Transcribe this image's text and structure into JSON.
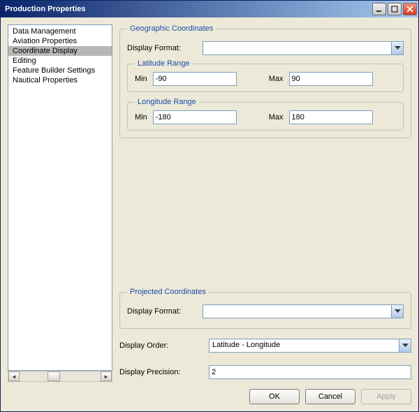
{
  "window": {
    "title": "Production Properties"
  },
  "sidebar": {
    "items": [
      {
        "label": "Data Management"
      },
      {
        "label": "Aviation Properties"
      },
      {
        "label": "Coordinate Display",
        "selected": true
      },
      {
        "label": "Editing"
      },
      {
        "label": "Feature Builder Settings"
      },
      {
        "label": "Nautical Properties"
      }
    ]
  },
  "geo": {
    "legend": "Geographic Coordinates",
    "displayFormatLabel": "Display Format:",
    "displayFormatValue": "",
    "lat": {
      "legend": "Latitude Range",
      "minLabel": "Min",
      "minValue": "-90",
      "maxLabel": "Max",
      "maxValue": "90"
    },
    "lon": {
      "legend": "Longitude Range",
      "minLabel": "Min",
      "minValue": "-180",
      "maxLabel": "Max",
      "maxValue": "180"
    }
  },
  "proj": {
    "legend": "Projected Coordinates",
    "displayFormatLabel": "Display Format:",
    "displayFormatValue": ""
  },
  "order": {
    "label": "Display Order:",
    "value": "Latitude - Longitude"
  },
  "precision": {
    "label": "Display Precision:",
    "value": "2"
  },
  "buttons": {
    "ok": "OK",
    "cancel": "Cancel",
    "apply": "Apply"
  },
  "colors": {
    "accent": "#1a4ba8",
    "fieldBorder": "#7f9db9",
    "dialogBg": "#ece9d8"
  }
}
